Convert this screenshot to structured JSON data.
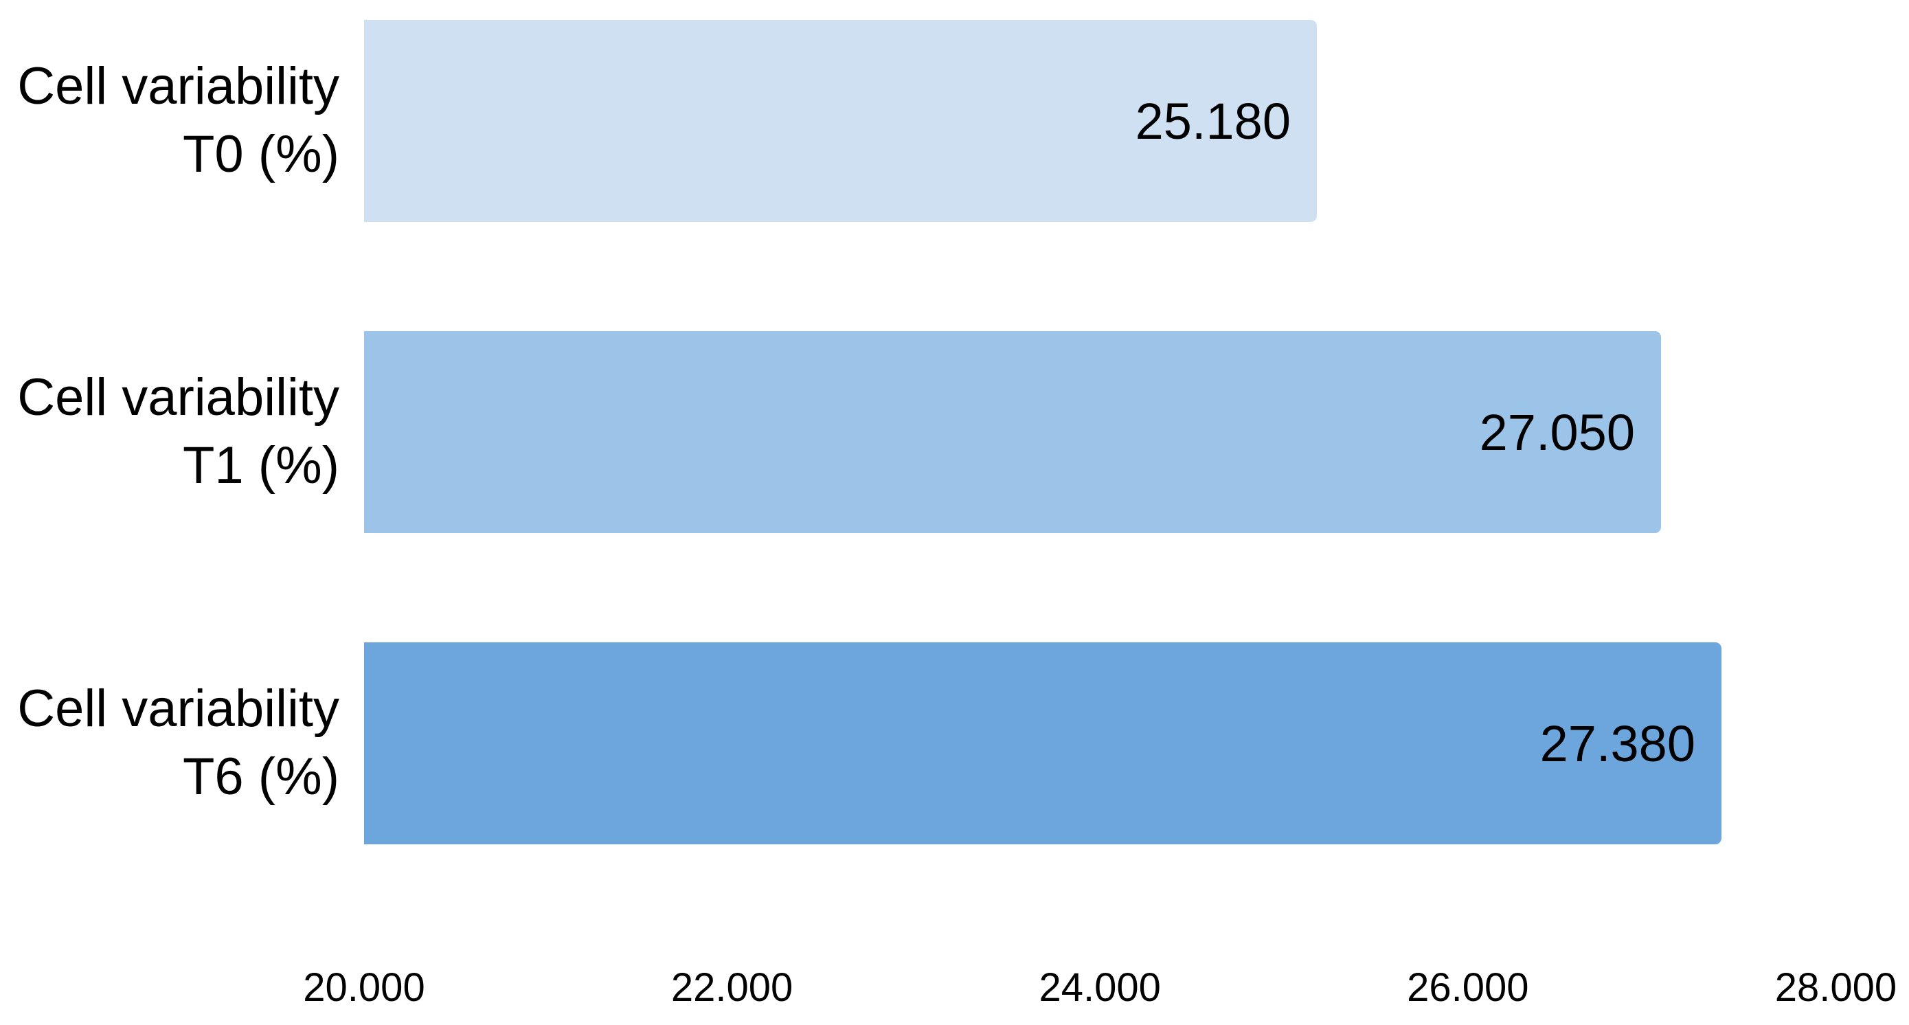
{
  "chart_data": {
    "type": "bar",
    "orientation": "horizontal",
    "title": "",
    "categories": [
      {
        "line1": "Cell variability",
        "line2": "T0 (%)"
      },
      {
        "line1": "Cell variability",
        "line2": "T1 (%)"
      },
      {
        "line1": "Cell variability",
        "line2": "T6 (%)"
      }
    ],
    "values": [
      25.18,
      27.05,
      27.38
    ],
    "value_labels": [
      "25.180",
      "27.050",
      "27.380"
    ],
    "bar_colors": [
      "#cfe0f2",
      "#9cc4e8",
      "#6ca6dc"
    ],
    "x_tick_values": [
      20,
      22,
      24,
      26,
      28
    ],
    "x_tick_labels": [
      "20.000",
      "22.000",
      "24.000",
      "26.000",
      "28.000"
    ],
    "xlim": [
      20,
      28
    ],
    "grid": false,
    "legend": false,
    "background_color": "#ffffff",
    "text_color": "#000000"
  }
}
